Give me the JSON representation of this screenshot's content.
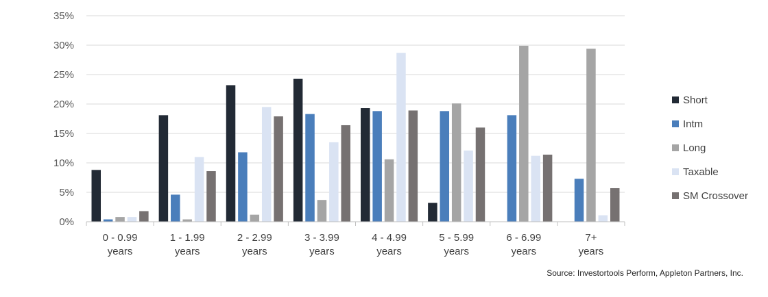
{
  "chart_data": {
    "type": "bar",
    "title": "",
    "xlabel": "",
    "ylabel": "",
    "ylim": [
      0,
      35
    ],
    "yticks": [
      0,
      5,
      10,
      15,
      20,
      25,
      30,
      35
    ],
    "ytick_labels": [
      "0%",
      "5%",
      "10%",
      "15%",
      "20%",
      "25%",
      "30%",
      "35%"
    ],
    "grid": true,
    "legend_position": "right",
    "categories": [
      [
        "0 - 0.99",
        "years"
      ],
      [
        "1 - 1.99",
        "years"
      ],
      [
        "2 - 2.99",
        "years"
      ],
      [
        "3 - 3.99",
        "years"
      ],
      [
        "4 - 4.99",
        "years"
      ],
      [
        "5 - 5.99",
        "years"
      ],
      [
        "6 - 6.99",
        "years"
      ],
      [
        "7+",
        "years"
      ]
    ],
    "series": [
      {
        "name": "Short",
        "color": "#222a35",
        "values": [
          8.8,
          18.1,
          23.2,
          24.3,
          19.3,
          3.2,
          0,
          0
        ]
      },
      {
        "name": "Intm",
        "color": "#4a7ebb",
        "values": [
          0.4,
          4.6,
          11.8,
          18.3,
          18.8,
          18.8,
          18.1,
          7.3
        ]
      },
      {
        "name": "Long",
        "color": "#a5a5a5",
        "values": [
          0.8,
          0.4,
          1.2,
          3.7,
          10.6,
          20.1,
          29.9,
          29.4
        ]
      },
      {
        "name": "Taxable",
        "color": "#dae3f3",
        "values": [
          0.8,
          11.0,
          19.5,
          13.5,
          28.7,
          12.1,
          11.2,
          1.1
        ]
      },
      {
        "name": "SM Crossover",
        "color": "#767171",
        "values": [
          1.8,
          8.6,
          17.9,
          16.4,
          18.9,
          16.0,
          11.4,
          5.7
        ]
      }
    ]
  },
  "source_text": "Source: Investortools Perform, Appleton Partners, Inc."
}
